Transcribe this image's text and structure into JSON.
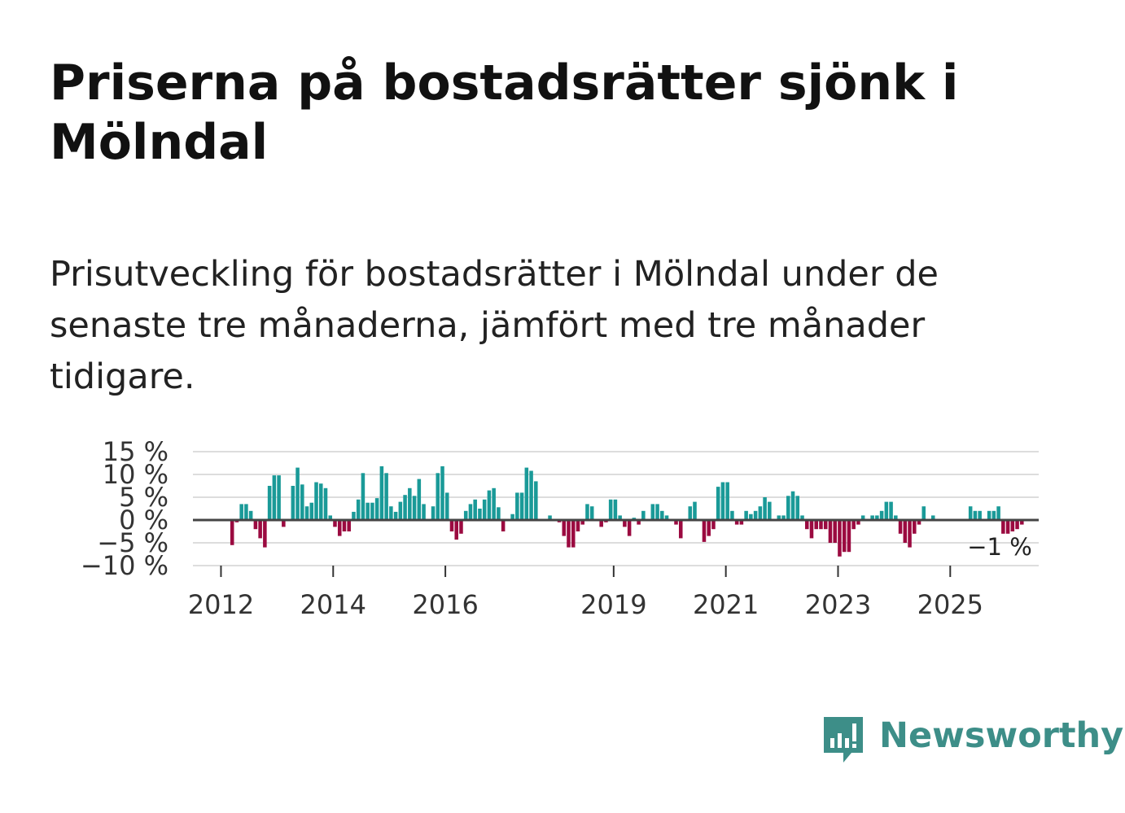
{
  "title": "Priserna på bostadsrätter sjönk i Mölndal",
  "subtitle": "Prisutveckling för bostadsrätter i Mölndal under de senaste tre månaderna, jämfört med tre månader tidigare.",
  "brand": {
    "name": "Newsworthy",
    "icon": "newsworthy-logo-icon",
    "color": "#3d8e88"
  },
  "colors": {
    "positive": "#1a9a98",
    "negative": "#9b0a40",
    "zero_line": "#444444",
    "grid": "#dddddd"
  },
  "chart_data": {
    "type": "bar",
    "title": "",
    "xlabel": "",
    "ylabel": "",
    "ylim": [
      -10,
      15
    ],
    "yticks": [
      15,
      10,
      5,
      0,
      -5,
      -10
    ],
    "ytick_labels": [
      "15 %",
      "10 %",
      "5 %",
      "0 %",
      "−5 %",
      "−10 %"
    ],
    "x_start": 2011.5,
    "x_step": 0.0833,
    "xticks": [
      2012,
      2014,
      2016,
      2019,
      2021,
      2023,
      2025
    ],
    "xtick_labels": [
      "2012",
      "2014",
      "2016",
      "2019",
      "2021",
      "2023",
      "2025"
    ],
    "last_value_label": "−1 %",
    "series": [
      {
        "name": "Prisutveckling",
        "values": [
          0,
          0,
          0,
          0,
          0,
          0,
          0,
          0,
          -5.5,
          -0.5,
          3.5,
          3.5,
          2,
          -2,
          -4,
          -6,
          7.5,
          9.8,
          9.8,
          -1.5,
          0,
          7.5,
          11.5,
          7.8,
          3,
          3.8,
          8.3,
          8,
          7,
          1,
          -1.5,
          -3.5,
          -2.5,
          -2.5,
          1.8,
          4.5,
          10.3,
          3.8,
          3.8,
          4.8,
          11.8,
          10.3,
          3,
          1.8,
          4,
          5.5,
          7,
          5.3,
          9,
          3.5,
          0,
          3,
          10.3,
          11.8,
          6,
          -2.5,
          -4.3,
          -3,
          2,
          3.5,
          4.5,
          2.5,
          4.5,
          6.5,
          7,
          2.8,
          -2.5,
          0,
          1.3,
          6,
          6,
          11.5,
          10.8,
          8.5,
          0,
          0,
          1,
          0,
          -0.5,
          -3.5,
          -6,
          -6,
          -2.5,
          -1,
          3.5,
          3,
          0,
          -1.5,
          -0.5,
          4.5,
          4.5,
          1,
          -1.5,
          -3.5,
          0.5,
          -1,
          2,
          0,
          3.5,
          3.5,
          2,
          1,
          0,
          -1,
          -4,
          0,
          3,
          4,
          0,
          -4.8,
          -3.5,
          -2,
          7.3,
          8.3,
          8.3,
          2,
          -1,
          -1,
          2,
          1.3,
          2,
          3,
          5,
          4,
          0,
          1,
          1,
          5.3,
          6.3,
          5.3,
          1,
          -2,
          -4,
          -2,
          -2,
          -2,
          -5,
          -5,
          -8,
          -7,
          -7,
          -2,
          -1,
          1,
          0,
          1,
          1,
          2,
          4,
          4,
          1,
          -3,
          -5,
          -6,
          -3,
          -1,
          3,
          0,
          1,
          0,
          0,
          0,
          0,
          0,
          0,
          0,
          3,
          2,
          2,
          0,
          2,
          2,
          3,
          -3,
          -3,
          -2.5,
          -2,
          -1,
          0,
          0,
          0
        ]
      }
    ]
  }
}
